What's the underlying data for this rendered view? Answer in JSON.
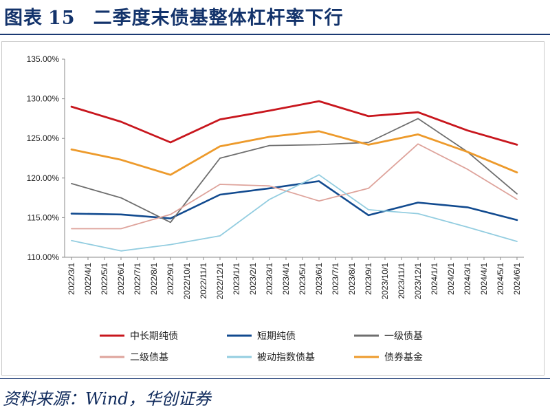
{
  "header": {
    "figure_label": "图表",
    "figure_number": "15",
    "title": "二季度末债基整体杠杆率下行"
  },
  "source": "资料来源：Wind，华创证券",
  "chart_data": {
    "type": "line",
    "title": "",
    "xlabel": "",
    "ylabel": "",
    "ylim": [
      110,
      135
    ],
    "yticks": [
      "135.00%",
      "130.00%",
      "125.00%",
      "120.00%",
      "115.00%",
      "110.00%"
    ],
    "grid": false,
    "legend_position": "bottom",
    "categories": [
      "2022/3/1",
      "2022/4/1",
      "2022/5/1",
      "2022/6/1",
      "2022/7/1",
      "2022/8/1",
      "2022/9/1",
      "2022/10/1",
      "2022/11/1",
      "2022/12/1",
      "2023/1/1",
      "2023/2/1",
      "2023/3/1",
      "2023/4/1",
      "2023/5/1",
      "2023/6/1",
      "2023/7/1",
      "2023/8/1",
      "2023/9/1",
      "2023/10/1",
      "2023/11/1",
      "2023/12/1",
      "2024/1/1",
      "2024/2/1",
      "2024/3/1",
      "2024/4/1",
      "2024/5/1",
      "2024/6/1"
    ],
    "series": [
      {
        "name": "中长期纯债",
        "color": "#c8161d",
        "points": [
          [
            0,
            129.0
          ],
          [
            3,
            127.1
          ],
          [
            6,
            124.5
          ],
          [
            9,
            127.4
          ],
          [
            12,
            128.5
          ],
          [
            15,
            129.7
          ],
          [
            18,
            127.8
          ],
          [
            21,
            128.3
          ],
          [
            24,
            126.0
          ],
          [
            27,
            124.2
          ]
        ]
      },
      {
        "name": "短期纯债",
        "color": "#114a8f",
        "points": [
          [
            0,
            115.5
          ],
          [
            3,
            115.4
          ],
          [
            6,
            114.9
          ],
          [
            9,
            117.9
          ],
          [
            12,
            118.7
          ],
          [
            15,
            119.6
          ],
          [
            18,
            115.3
          ],
          [
            21,
            116.9
          ],
          [
            24,
            116.3
          ],
          [
            27,
            114.7
          ]
        ]
      },
      {
        "name": "一级债基",
        "color": "#6e6e6e",
        "points": [
          [
            0,
            119.3
          ],
          [
            3,
            117.5
          ],
          [
            6,
            114.4
          ],
          [
            9,
            122.5
          ],
          [
            12,
            124.1
          ],
          [
            15,
            124.2
          ],
          [
            18,
            124.5
          ],
          [
            21,
            127.5
          ],
          [
            24,
            123.3
          ],
          [
            27,
            118.0
          ]
        ]
      },
      {
        "name": "二级债基",
        "color": "#dea39b",
        "points": [
          [
            0,
            113.6
          ],
          [
            3,
            113.6
          ],
          [
            6,
            115.4
          ],
          [
            9,
            119.2
          ],
          [
            12,
            119.0
          ],
          [
            15,
            117.1
          ],
          [
            18,
            118.7
          ],
          [
            21,
            124.3
          ],
          [
            24,
            121.1
          ],
          [
            27,
            117.3
          ]
        ]
      },
      {
        "name": "被动指数债基",
        "color": "#93cde0",
        "points": [
          [
            0,
            112.1
          ],
          [
            3,
            110.8
          ],
          [
            6,
            111.6
          ],
          [
            9,
            112.7
          ],
          [
            12,
            117.3
          ],
          [
            15,
            120.4
          ],
          [
            18,
            116.0
          ],
          [
            21,
            115.5
          ],
          [
            24,
            113.8
          ],
          [
            27,
            112.0
          ]
        ]
      },
      {
        "name": "债券基金",
        "color": "#ed9a2b",
        "points": [
          [
            0,
            123.6
          ],
          [
            3,
            122.3
          ],
          [
            6,
            120.4
          ],
          [
            9,
            124.0
          ],
          [
            12,
            125.2
          ],
          [
            15,
            125.9
          ],
          [
            18,
            124.2
          ],
          [
            21,
            125.5
          ],
          [
            24,
            123.3
          ],
          [
            27,
            120.7
          ]
        ]
      }
    ]
  }
}
